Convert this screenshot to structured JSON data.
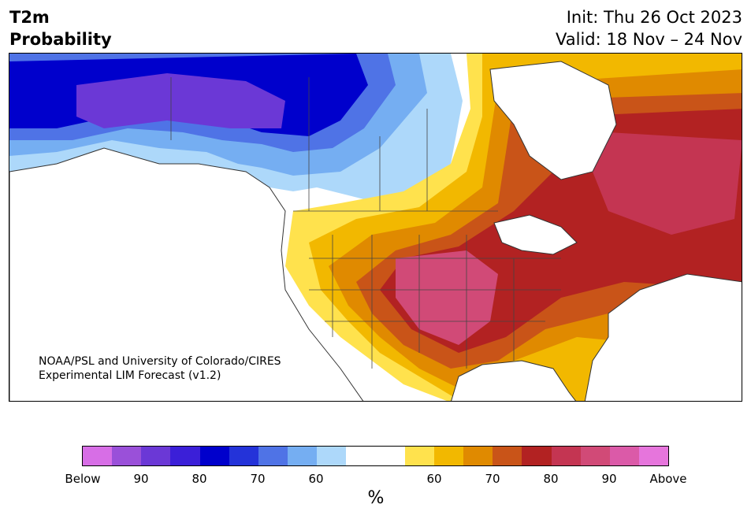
{
  "title": {
    "left_line1": "T2m",
    "left_line2": "Probability",
    "init": "Init: Thu 26 Oct 2023",
    "valid": "Valid: 18 Nov – 24 Nov"
  },
  "credit": {
    "line1": "NOAA/PSL and University of Colorado/CIRES",
    "line2": "Experimental LIM Forecast (v1.2)"
  },
  "colorbar": {
    "colors": [
      "#d76ee6",
      "#9a50d9",
      "#6b38d6",
      "#3b1fd8",
      "#0000cc",
      "#2433d9",
      "#4f73e6",
      "#75aef2",
      "#add8fa",
      "#ffffff",
      "#ffffff",
      "#ffe24d",
      "#f2b800",
      "#e08a00",
      "#c95418",
      "#b22222",
      "#c43552",
      "#d14a77",
      "#db5aa8",
      "#e675dc"
    ],
    "tick_labels": [
      "Below",
      "90",
      "80",
      "70",
      "60",
      "60",
      "70",
      "80",
      "90",
      "Above"
    ],
    "unit": "%"
  },
  "map": {
    "region": "North America",
    "category_colors": {
      "below_strong": "#6b38d6",
      "below_mid": "#0000cc",
      "below_weak": "#add8fa",
      "above_weak": "#ffe24d",
      "above_mid": "#e08a00",
      "above_strong": "#b22222",
      "above_max": "#d14a77"
    }
  }
}
